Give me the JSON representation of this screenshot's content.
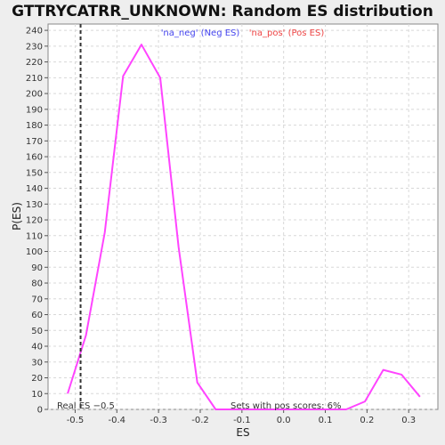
{
  "chart_data": {
    "type": "line",
    "title": "GTTRYCATRR_UNKNOWN: Random ES distribution",
    "xlabel": "ES",
    "ylabel": "P(ES)",
    "xlim": [
      -0.565,
      0.37
    ],
    "ylim": [
      0,
      244
    ],
    "x_ticks": [
      -0.5,
      -0.4,
      -0.3,
      -0.2,
      -0.1,
      0.0,
      0.1,
      0.2,
      0.3
    ],
    "x_tick_labels": [
      "-0.5",
      "-0.4",
      "-0.3",
      "-0.2",
      "-0.1",
      "0.0",
      "0.1",
      "0.2",
      "0.3"
    ],
    "y_ticks": [
      0,
      10,
      20,
      30,
      40,
      50,
      60,
      70,
      80,
      90,
      100,
      110,
      120,
      130,
      140,
      150,
      160,
      170,
      180,
      190,
      200,
      210,
      220,
      230,
      240
    ],
    "grid": true,
    "legend_placement": "top-center",
    "legend": [
      {
        "label": "'na_neg' (Neg ES)",
        "color": "#4444ee"
      },
      {
        "label": "'na_pos' (Pos ES)",
        "color": "#ee4444"
      }
    ],
    "series": [
      {
        "color": "#ff44ff",
        "points": [
          [
            -0.518,
            10
          ],
          [
            -0.474,
            47
          ],
          [
            -0.429,
            112
          ],
          [
            -0.385,
            211
          ],
          [
            -0.341,
            231
          ],
          [
            -0.296,
            210
          ],
          [
            -0.252,
            103
          ],
          [
            -0.207,
            17
          ],
          [
            -0.163,
            0
          ],
          [
            0.15,
            0
          ],
          [
            0.195,
            5
          ],
          [
            0.239,
            25
          ],
          [
            0.283,
            22
          ],
          [
            0.327,
            8
          ]
        ]
      }
    ],
    "real_es": {
      "value": -0.487,
      "label": "Real ES −0.5",
      "color": "#333333"
    },
    "annotation": "Sets with pos scores: 6%"
  }
}
